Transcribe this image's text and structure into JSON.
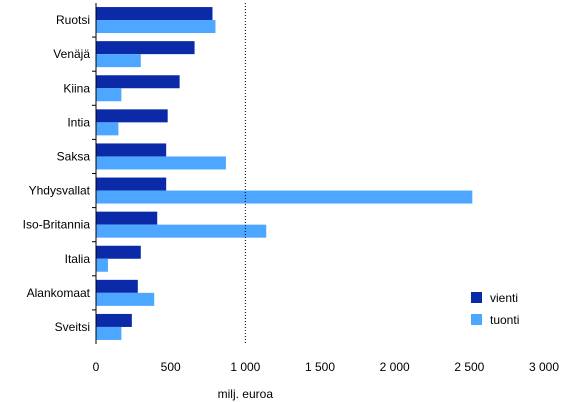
{
  "chart_data": {
    "type": "bar",
    "orientation": "horizontal",
    "categories": [
      "Ruotsi",
      "Venäjä",
      "Kiina",
      "Intia",
      "Saksa",
      "Yhdysvallat",
      "Iso-Britannia",
      "Italia",
      "Alankomaat",
      "Sveitsi"
    ],
    "series": [
      {
        "name": "vienti",
        "color": "#0a2aa8",
        "values": [
          780,
          660,
          560,
          480,
          470,
          470,
          410,
          300,
          280,
          240
        ]
      },
      {
        "name": "tuonti",
        "color": "#4da6ff",
        "values": [
          800,
          300,
          170,
          150,
          870,
          2520,
          1140,
          80,
          390,
          170
        ]
      }
    ],
    "x_ticks": [
      0,
      500,
      1000,
      1500,
      2000,
      2500,
      3000
    ],
    "x_tick_labels": [
      "0",
      "500",
      "1 000",
      "1 500",
      "2 000",
      "2 500",
      "3 000"
    ],
    "xlim": [
      0,
      3000
    ],
    "xlabel": "milj. euroa",
    "reference_line": 1000,
    "grid": false,
    "legend_position": "bottom-right"
  }
}
